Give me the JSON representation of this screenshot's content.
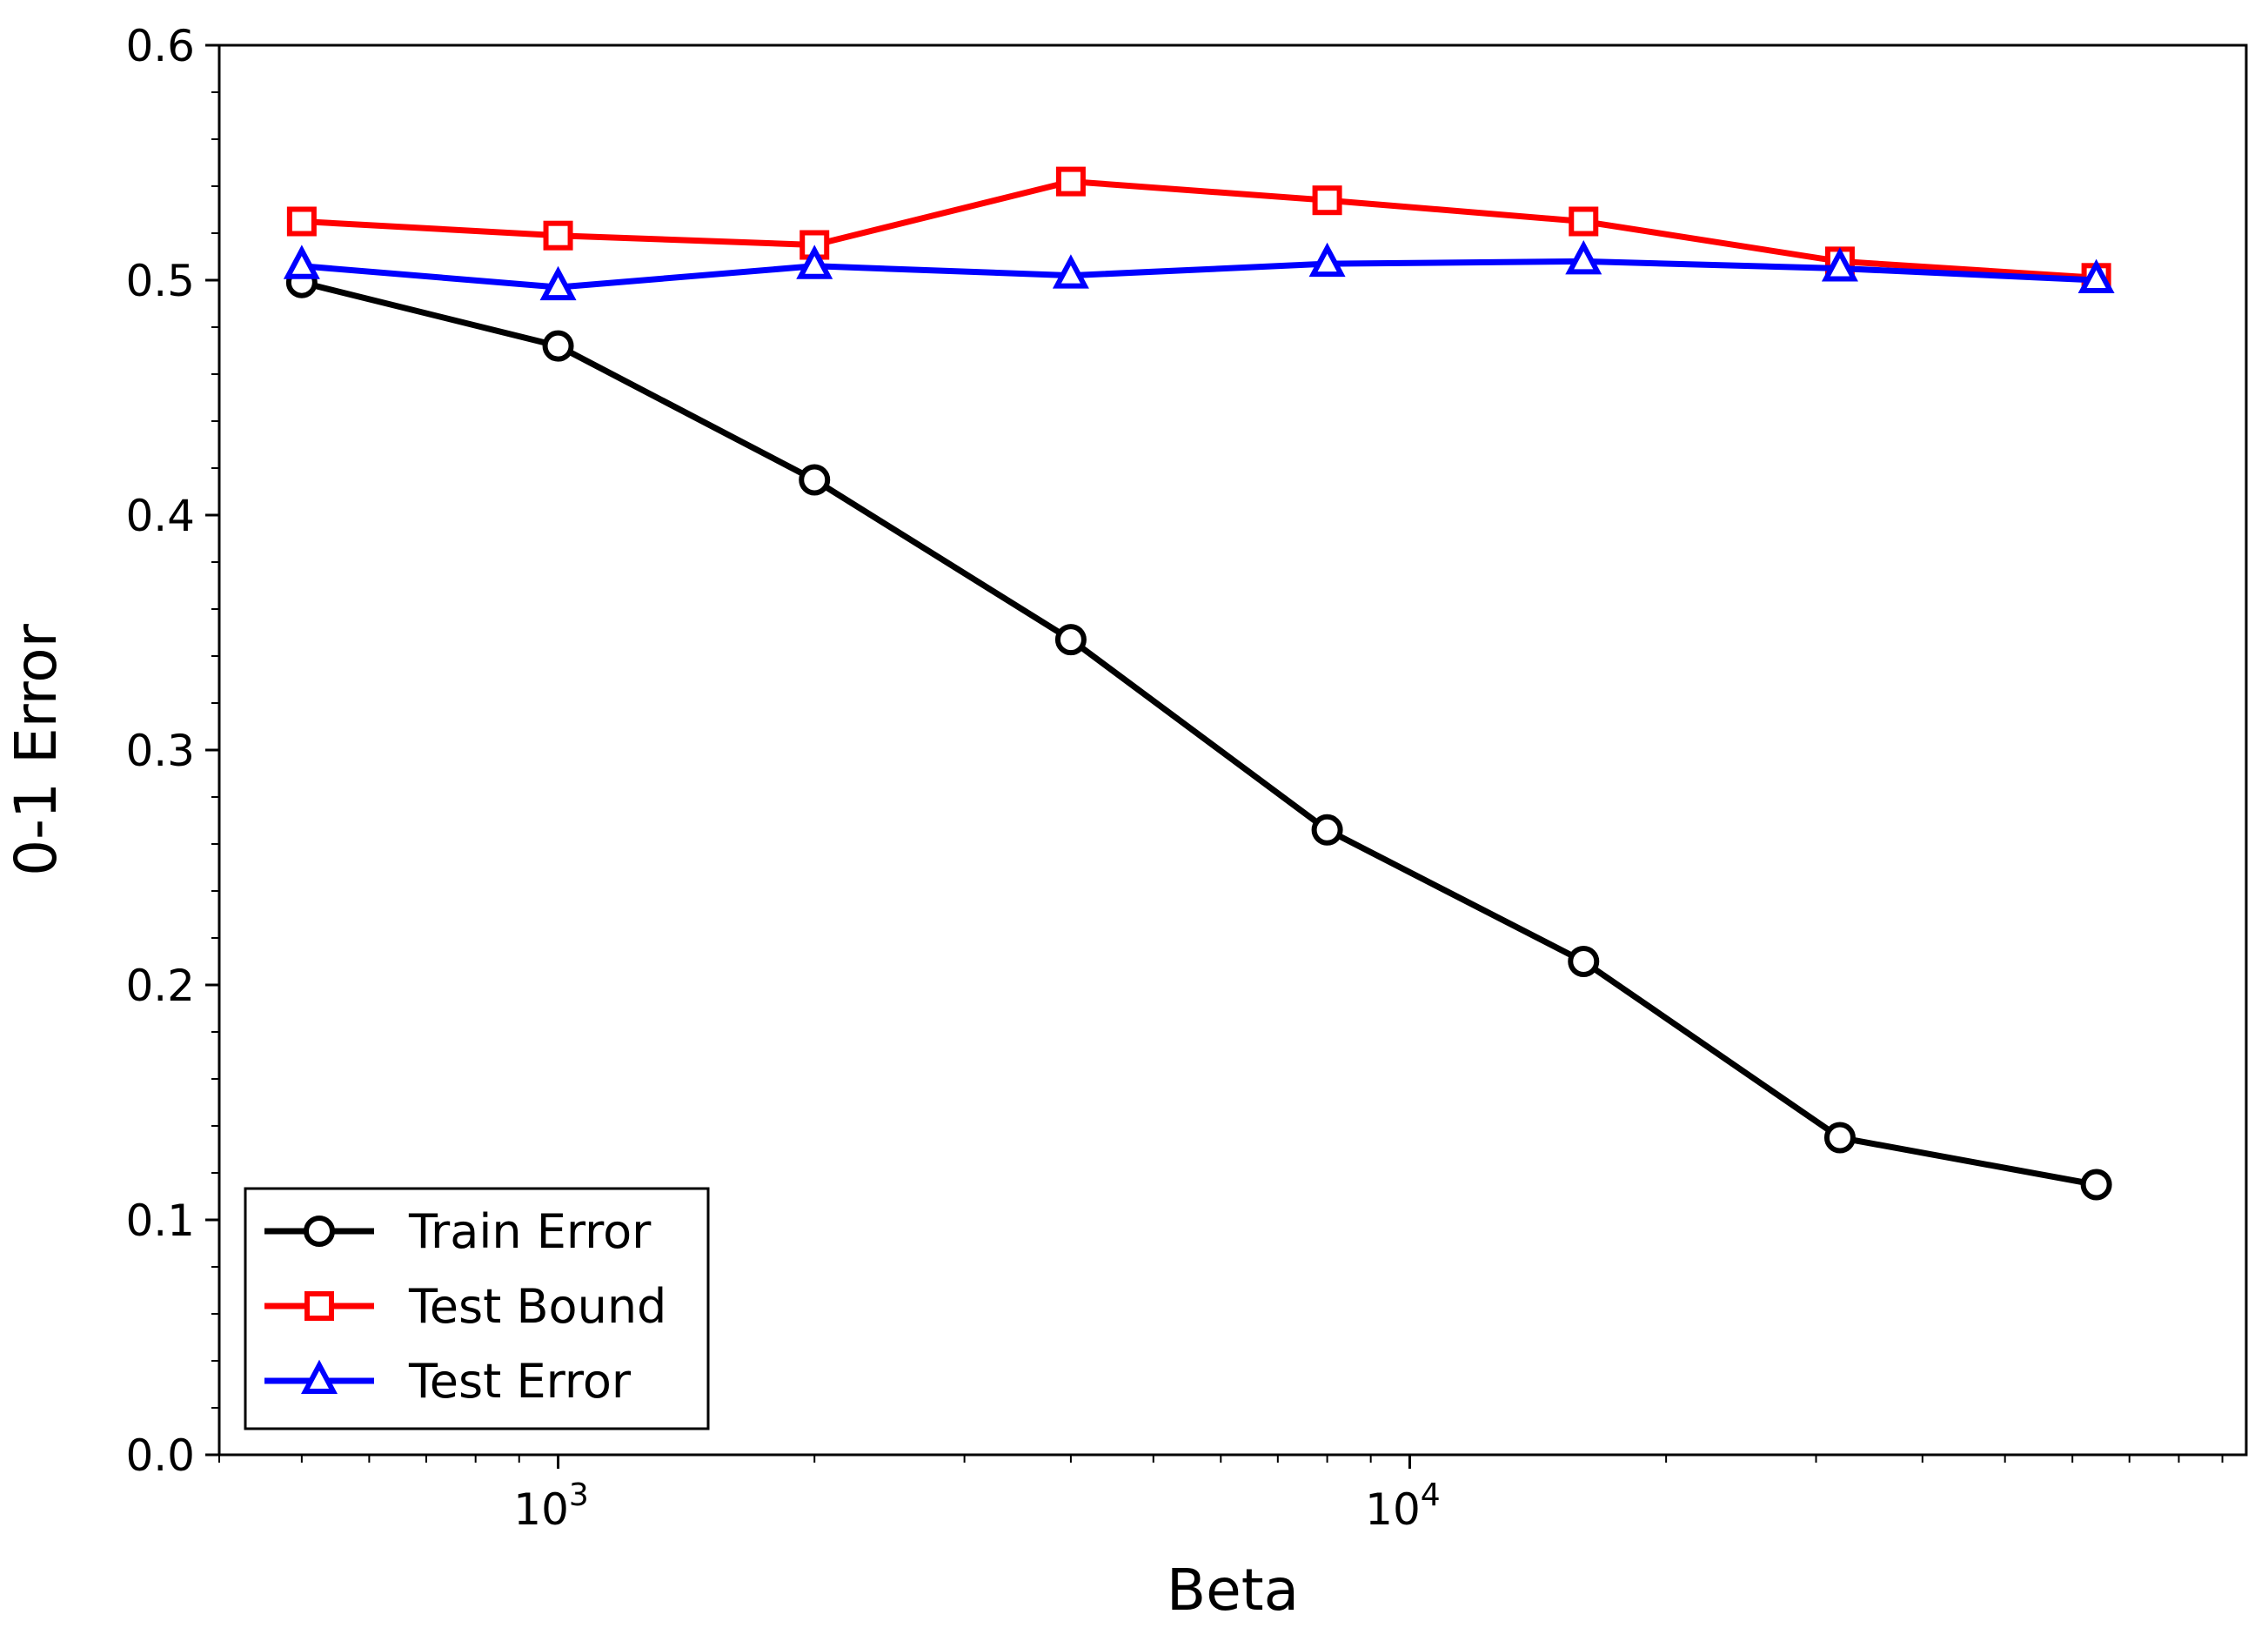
{
  "chart_data": {
    "type": "line",
    "xlabel": "Beta",
    "ylabel": "0-1 Error",
    "x_scale": "log",
    "xlim": [
      400,
      96000
    ],
    "ylim": [
      0.0,
      0.6
    ],
    "x": [
      500,
      1000,
      2000,
      4000,
      8000,
      16000,
      32000,
      64000
    ],
    "x_ticks": [
      {
        "value": 1000,
        "base": "10",
        "exp": "3"
      },
      {
        "value": 10000,
        "base": "10",
        "exp": "4"
      }
    ],
    "y_ticks": [
      "0.0",
      "0.1",
      "0.2",
      "0.3",
      "0.4",
      "0.5",
      "0.6"
    ],
    "grid": false,
    "legend_position": "lower-left",
    "series": [
      {
        "name": "Train Error",
        "color": "#000000",
        "marker": "circle",
        "values": [
          0.499,
          0.472,
          0.415,
          0.347,
          0.266,
          0.21,
          0.135,
          0.115
        ]
      },
      {
        "name": "Test Bound",
        "color": "#ff0000",
        "marker": "square",
        "values": [
          0.525,
          0.519,
          0.515,
          0.542,
          0.534,
          0.525,
          0.508,
          0.501
        ]
      },
      {
        "name": "Test Error",
        "color": "#0000ff",
        "marker": "triangle",
        "values": [
          0.506,
          0.497,
          0.506,
          0.502,
          0.507,
          0.508,
          0.505,
          0.5
        ]
      }
    ]
  }
}
